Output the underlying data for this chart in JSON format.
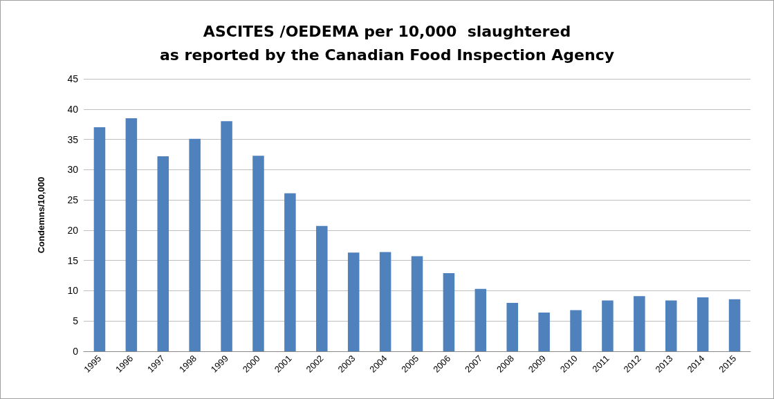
{
  "chart_data": {
    "type": "bar",
    "title": "ASCITES /OEDEMA per 10,000  slaughtered\nas reported by the Canadian Food Inspection Agency",
    "ylabel": "Condemns/10,000",
    "categories": [
      "1995",
      "1996",
      "1997",
      "1998",
      "1999",
      "2000",
      "2001",
      "2002",
      "2003",
      "2004",
      "2005",
      "2006",
      "2007",
      "2008",
      "2009",
      "2010",
      "2011",
      "2012",
      "2013",
      "2014",
      "2015"
    ],
    "values": [
      37.0,
      38.5,
      32.2,
      35.1,
      38.0,
      32.3,
      26.1,
      20.7,
      16.3,
      16.4,
      15.7,
      12.9,
      10.3,
      8.0,
      6.4,
      6.8,
      8.4,
      9.1,
      8.4,
      8.9,
      8.6
    ],
    "color": "#4f81bd",
    "ylim": [
      0,
      45
    ],
    "yticks": [
      0,
      5,
      10,
      15,
      20,
      25,
      30,
      35,
      40,
      45
    ],
    "grid": "y"
  }
}
